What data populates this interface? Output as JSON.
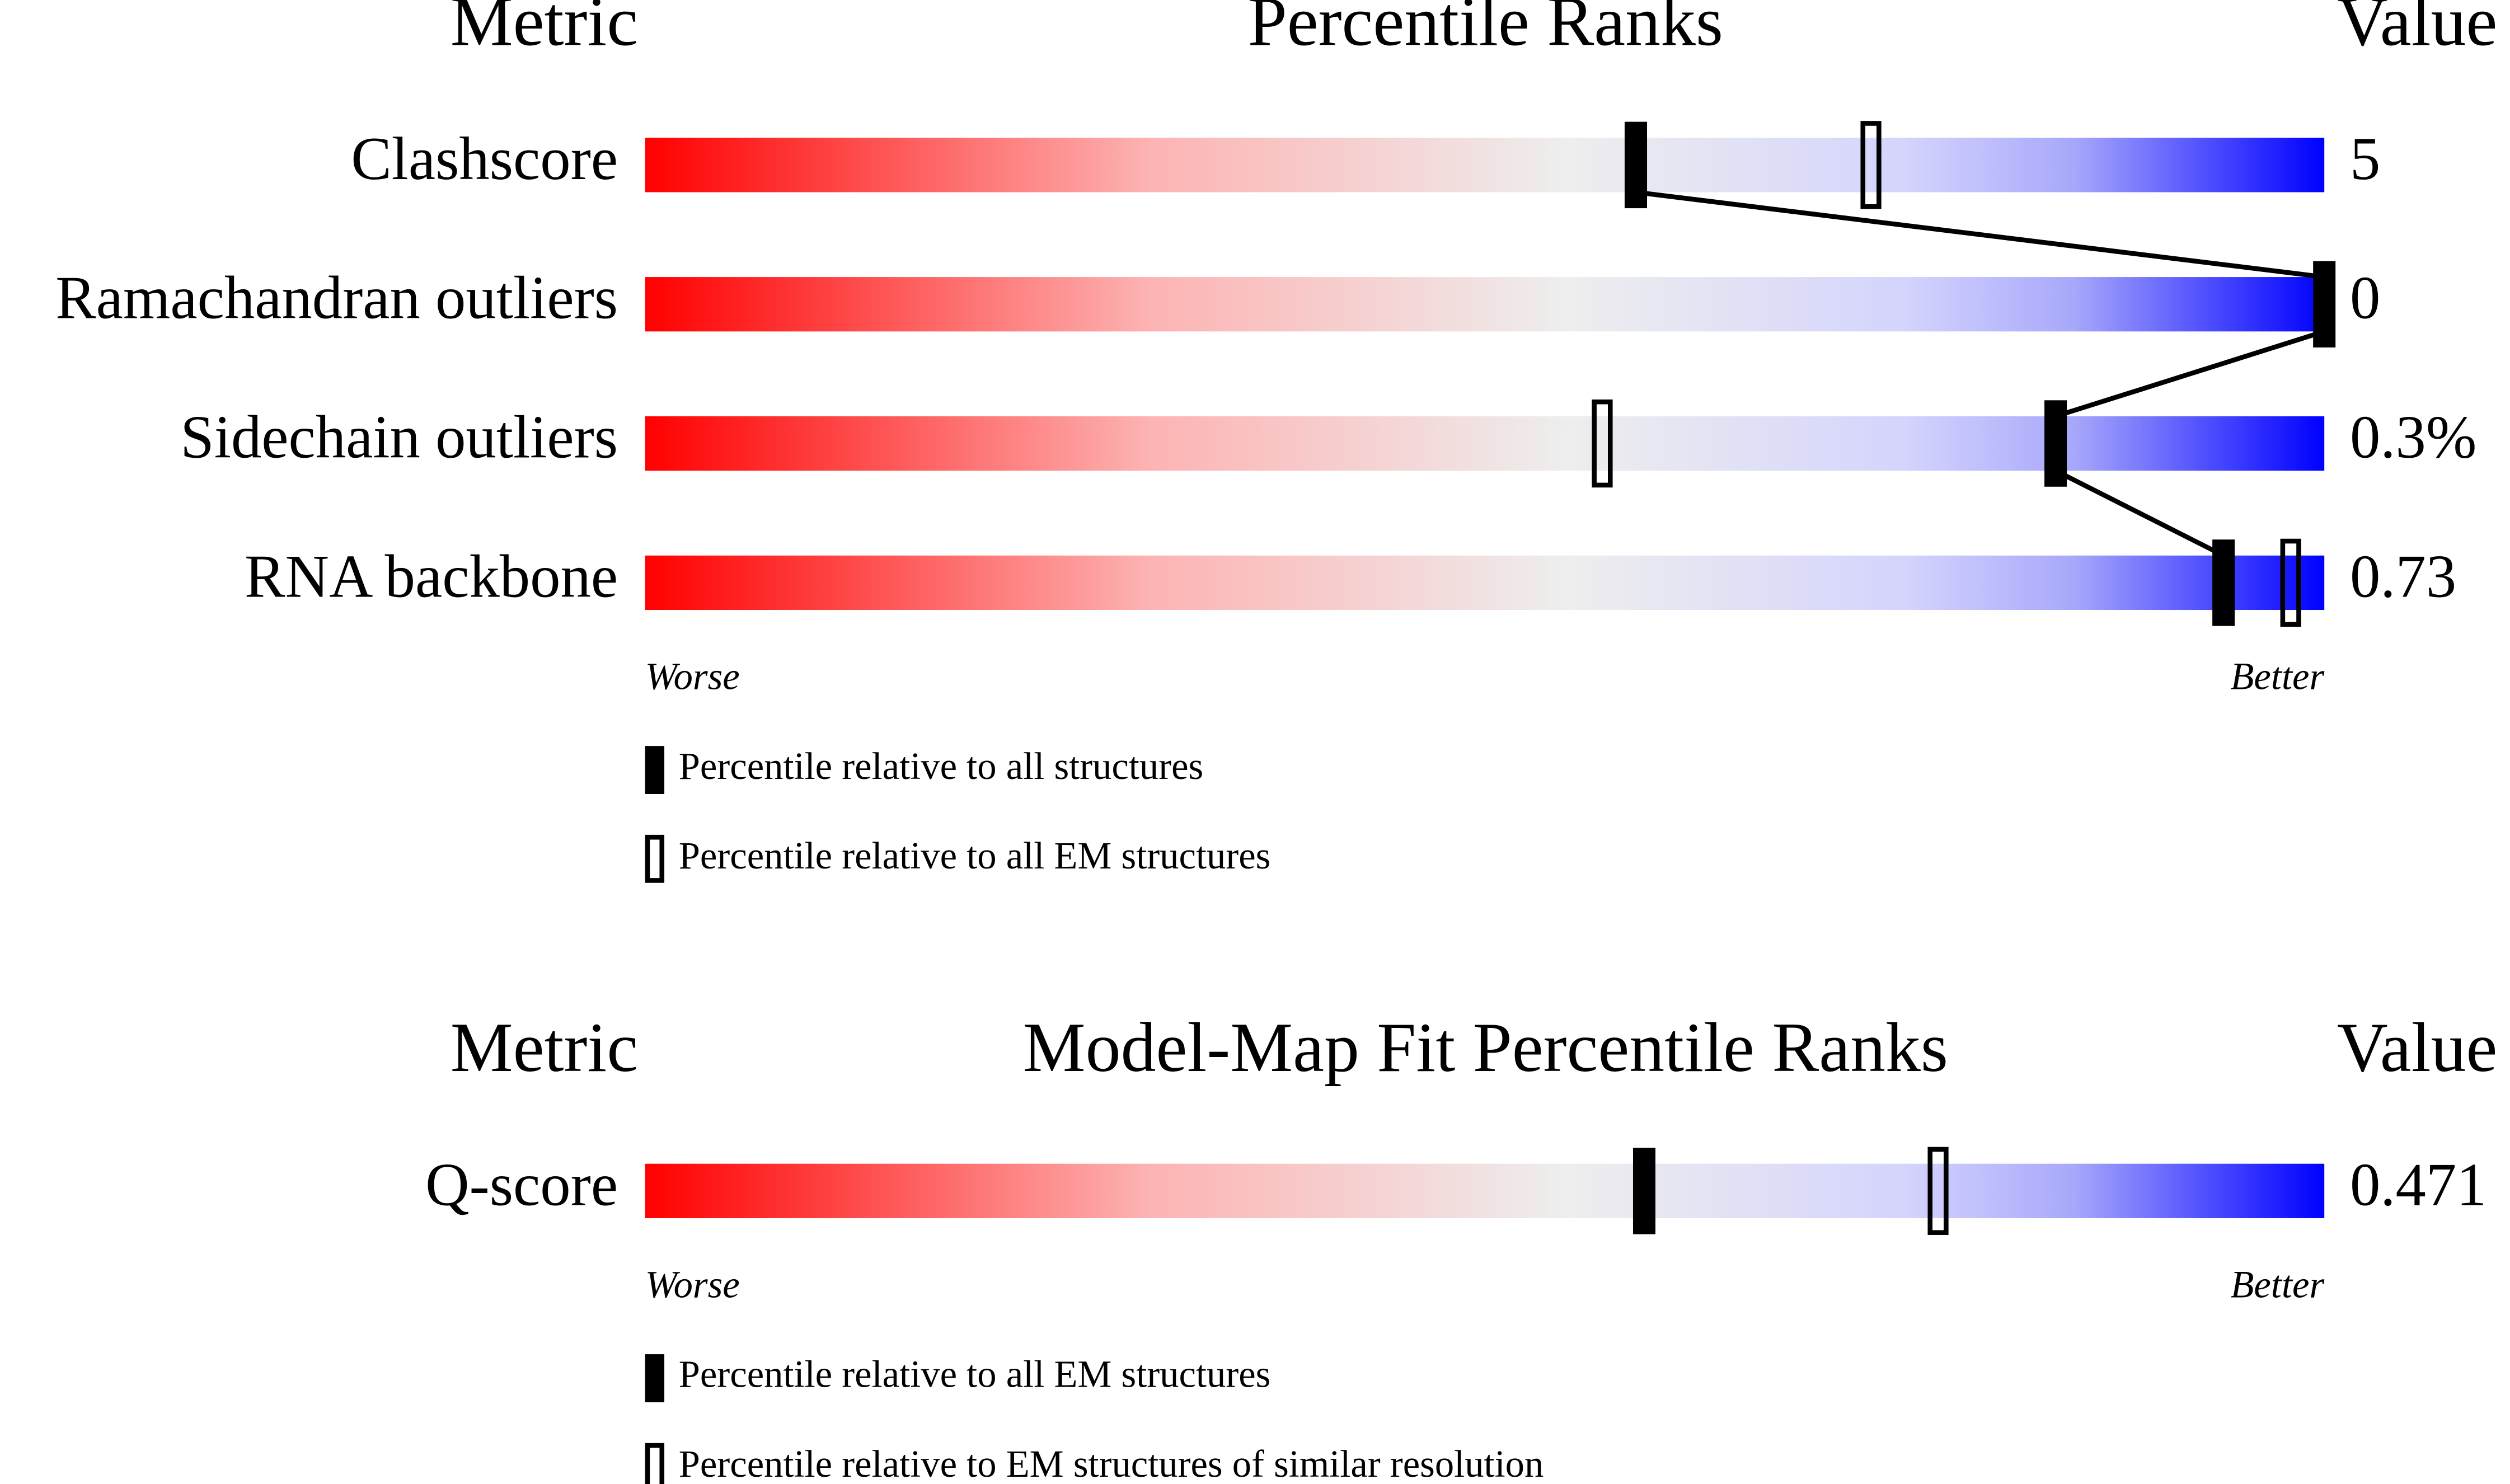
{
  "chart_data": [
    {
      "type": "percentile_slider",
      "headers": {
        "metric": "Metric",
        "title": "Percentile Ranks",
        "value": "Value"
      },
      "xlim": [
        0,
        100
      ],
      "rows": [
        {
          "name": "Clashscore",
          "value": 5,
          "percentile_all": 59,
          "percentile_em": 73
        },
        {
          "name": "Ramachandran outliers",
          "value": 0,
          "percentile_all": 100
        },
        {
          "name": "Sidechain outliers",
          "value": 0.3,
          "value_label": "0.3%",
          "percentile_all": 84,
          "percentile_em": 57
        },
        {
          "name": "RNA backbone",
          "value": 0.73,
          "percentile_all": 94,
          "percentile_em": 98
        }
      ],
      "scale_labels": {
        "worse": "Worse",
        "better": "Better"
      },
      "legend": {
        "filled": "Percentile relative to all structures",
        "open": "Percentile relative to all EM structures"
      },
      "connect": true
    },
    {
      "type": "percentile_slider",
      "headers": {
        "metric": "Metric",
        "title": "Model-Map Fit Percentile Ranks",
        "value": "Value"
      },
      "xlim": [
        0,
        100
      ],
      "rows": [
        {
          "name": "Q-score",
          "value": 0.471,
          "percentile_all": 59.5,
          "percentile_em": 77
        }
      ],
      "scale_labels": {
        "worse": "Worse",
        "better": "Better"
      },
      "legend": {
        "filled": "Percentile relative to all EM structures",
        "open": "Percentile relative to EM structures of similar resolution"
      },
      "connect": false
    }
  ]
}
